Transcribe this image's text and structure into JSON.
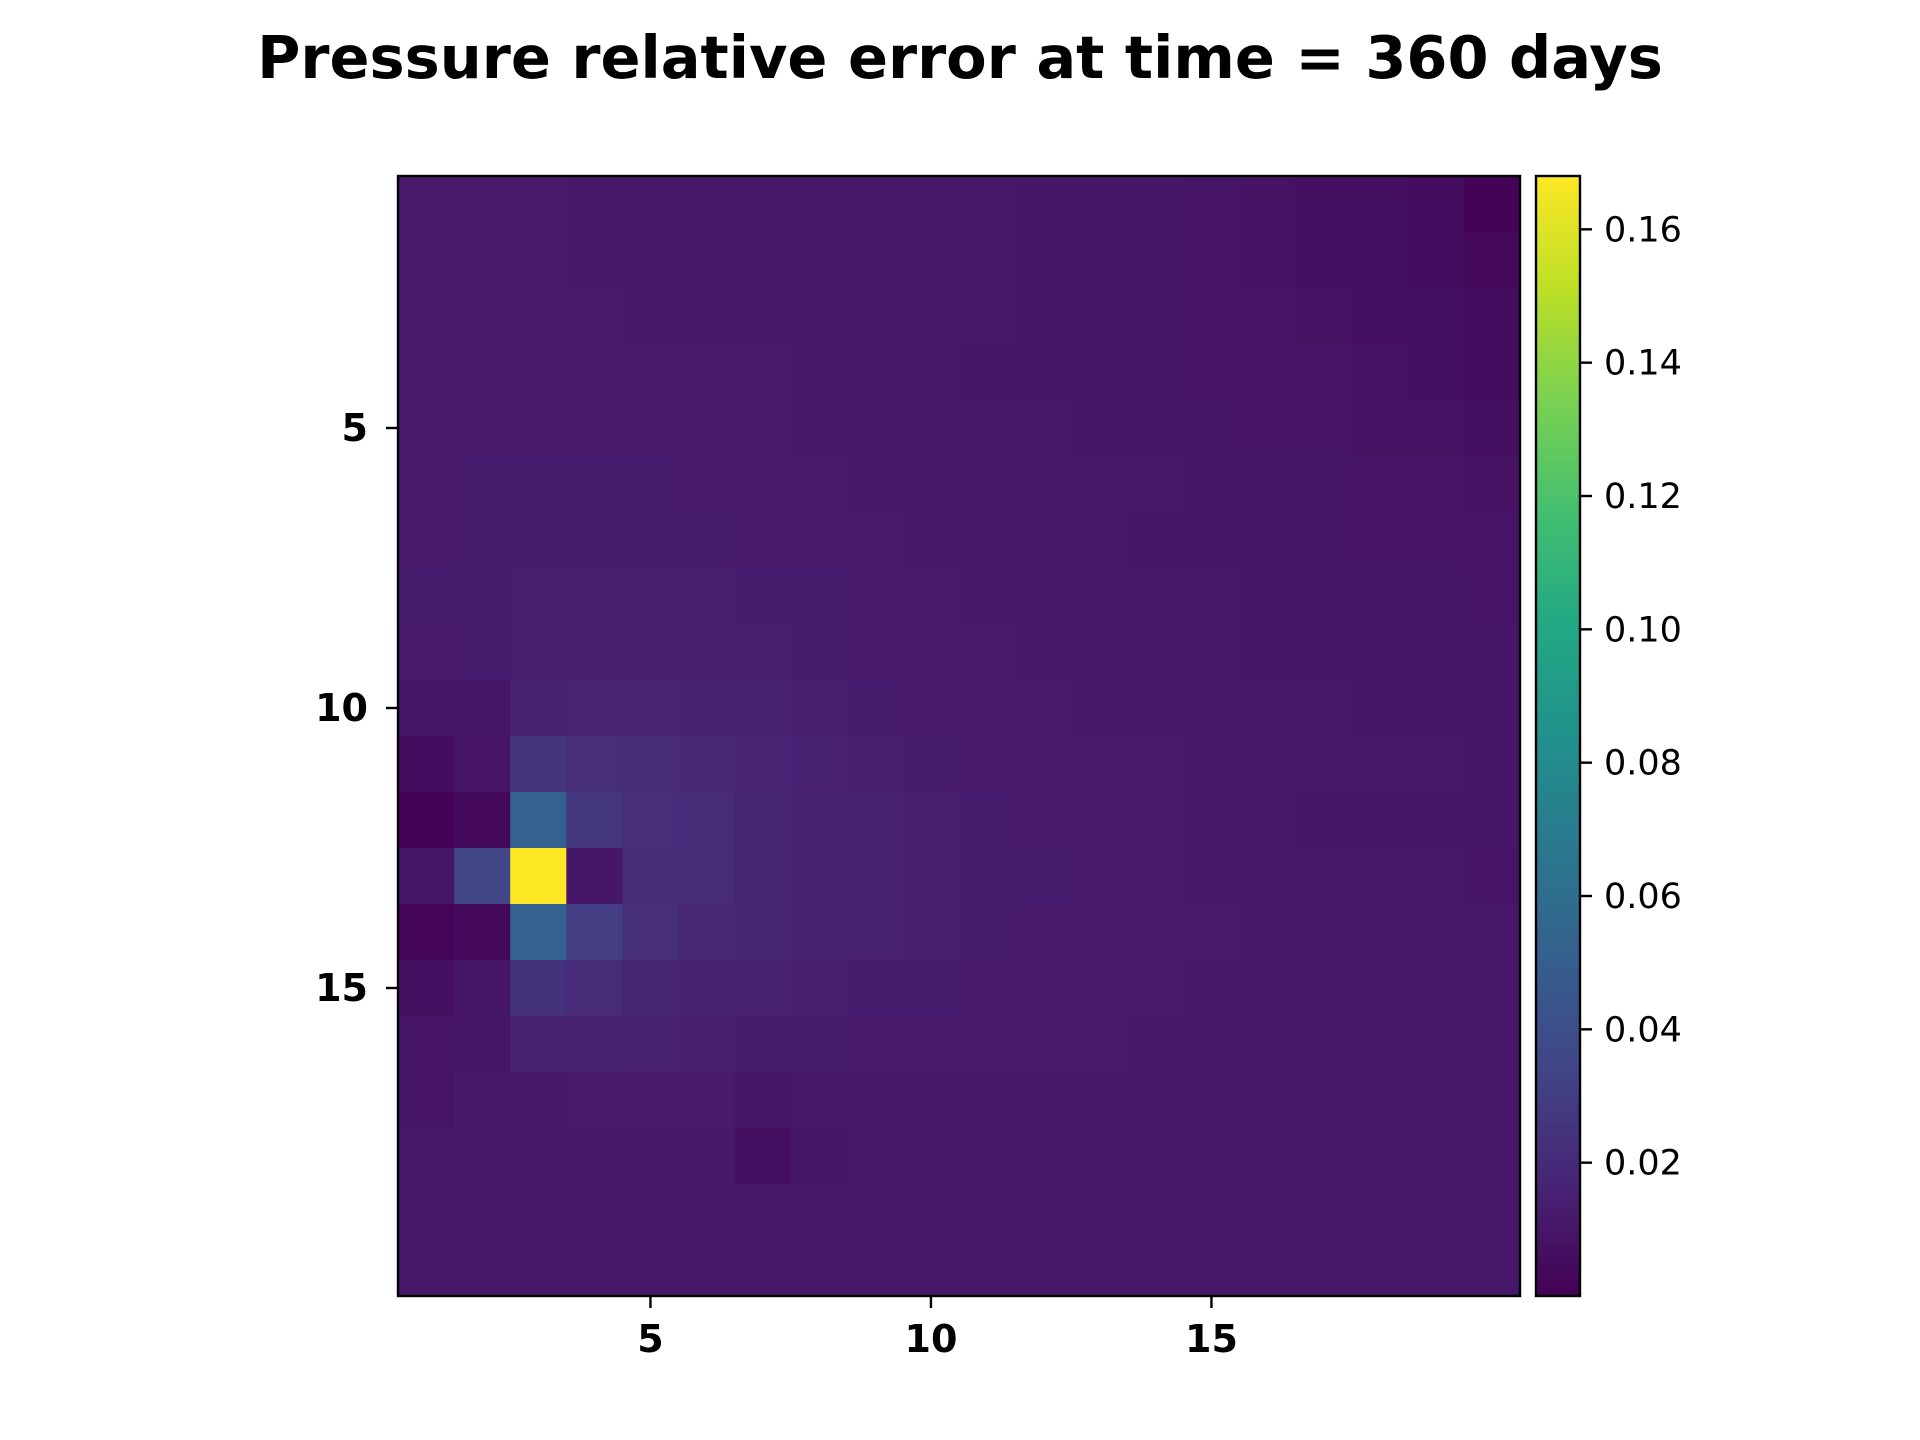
{
  "chart_data": {
    "type": "heatmap",
    "title": "Pressure relative error at time = 360 days",
    "xlabel": "",
    "ylabel": "",
    "grid": false,
    "colormap": "viridis",
    "origin": "upper",
    "n_rows": 20,
    "n_cols": 20,
    "x_extent": [
      0.5,
      20.5
    ],
    "y_extent": [
      0.5,
      20.5
    ],
    "x_ticks": [
      5,
      10,
      15
    ],
    "x_tick_labels": [
      "5",
      "10",
      "15"
    ],
    "y_ticks": [
      5,
      10,
      15
    ],
    "y_tick_labels": [
      "5",
      "10",
      "15"
    ],
    "colorbar": {
      "vmin": 0.0,
      "vmax": 0.168,
      "ticks": [
        0.02,
        0.04,
        0.06,
        0.08,
        0.1,
        0.12,
        0.14,
        0.16
      ],
      "tick_labels": [
        "0.02",
        "0.04",
        "0.06",
        "0.08",
        "0.10",
        "0.12",
        "0.14",
        "0.16"
      ]
    },
    "values": [
      [
        0.012,
        0.012,
        0.012,
        0.011,
        0.011,
        0.011,
        0.011,
        0.011,
        0.011,
        0.011,
        0.011,
        0.01,
        0.01,
        0.01,
        0.009,
        0.008,
        0.007,
        0.007,
        0.005,
        0.001
      ],
      [
        0.012,
        0.012,
        0.012,
        0.011,
        0.011,
        0.011,
        0.011,
        0.011,
        0.011,
        0.011,
        0.011,
        0.01,
        0.01,
        0.01,
        0.009,
        0.008,
        0.007,
        0.007,
        0.006,
        0.004
      ],
      [
        0.012,
        0.012,
        0.012,
        0.012,
        0.011,
        0.011,
        0.011,
        0.011,
        0.011,
        0.011,
        0.011,
        0.01,
        0.01,
        0.01,
        0.009,
        0.009,
        0.008,
        0.007,
        0.007,
        0.006
      ],
      [
        0.012,
        0.012,
        0.012,
        0.012,
        0.012,
        0.012,
        0.012,
        0.011,
        0.011,
        0.011,
        0.01,
        0.01,
        0.01,
        0.01,
        0.009,
        0.009,
        0.009,
        0.008,
        0.007,
        0.006
      ],
      [
        0.012,
        0.012,
        0.012,
        0.012,
        0.012,
        0.012,
        0.012,
        0.011,
        0.011,
        0.011,
        0.011,
        0.011,
        0.01,
        0.01,
        0.01,
        0.009,
        0.009,
        0.008,
        0.008,
        0.007
      ],
      [
        0.012,
        0.013,
        0.013,
        0.013,
        0.013,
        0.012,
        0.012,
        0.012,
        0.011,
        0.011,
        0.011,
        0.011,
        0.011,
        0.011,
        0.01,
        0.01,
        0.01,
        0.009,
        0.009,
        0.008
      ],
      [
        0.012,
        0.013,
        0.013,
        0.013,
        0.013,
        0.013,
        0.012,
        0.012,
        0.012,
        0.011,
        0.011,
        0.011,
        0.011,
        0.01,
        0.01,
        0.01,
        0.01,
        0.009,
        0.009,
        0.009
      ],
      [
        0.013,
        0.013,
        0.014,
        0.014,
        0.014,
        0.014,
        0.013,
        0.013,
        0.012,
        0.012,
        0.011,
        0.011,
        0.011,
        0.011,
        0.011,
        0.01,
        0.01,
        0.01,
        0.01,
        0.009
      ],
      [
        0.012,
        0.013,
        0.014,
        0.014,
        0.014,
        0.014,
        0.014,
        0.013,
        0.012,
        0.012,
        0.012,
        0.011,
        0.011,
        0.011,
        0.011,
        0.01,
        0.01,
        0.01,
        0.01,
        0.01
      ],
      [
        0.01,
        0.01,
        0.016,
        0.017,
        0.017,
        0.016,
        0.015,
        0.014,
        0.013,
        0.012,
        0.012,
        0.012,
        0.011,
        0.011,
        0.011,
        0.011,
        0.011,
        0.01,
        0.01,
        0.01
      ],
      [
        0.006,
        0.009,
        0.025,
        0.022,
        0.02,
        0.019,
        0.017,
        0.015,
        0.014,
        0.013,
        0.012,
        0.012,
        0.012,
        0.012,
        0.011,
        0.011,
        0.011,
        0.011,
        0.011,
        0.01
      ],
      [
        0.001,
        0.004,
        0.052,
        0.027,
        0.022,
        0.02,
        0.018,
        0.016,
        0.015,
        0.014,
        0.013,
        0.012,
        0.012,
        0.012,
        0.011,
        0.011,
        0.01,
        0.01,
        0.01,
        0.01
      ],
      [
        0.01,
        0.035,
        0.168,
        0.01,
        0.02,
        0.02,
        0.018,
        0.016,
        0.015,
        0.014,
        0.013,
        0.013,
        0.012,
        0.012,
        0.011,
        0.011,
        0.011,
        0.011,
        0.011,
        0.009
      ],
      [
        0.002,
        0.004,
        0.052,
        0.03,
        0.022,
        0.019,
        0.018,
        0.016,
        0.015,
        0.014,
        0.013,
        0.012,
        0.012,
        0.012,
        0.012,
        0.011,
        0.011,
        0.011,
        0.011,
        0.011
      ],
      [
        0.007,
        0.01,
        0.024,
        0.02,
        0.018,
        0.016,
        0.015,
        0.014,
        0.013,
        0.013,
        0.012,
        0.012,
        0.012,
        0.012,
        0.011,
        0.011,
        0.011,
        0.011,
        0.011,
        0.011
      ],
      [
        0.009,
        0.01,
        0.016,
        0.016,
        0.015,
        0.014,
        0.013,
        0.013,
        0.012,
        0.012,
        0.012,
        0.012,
        0.012,
        0.011,
        0.011,
        0.011,
        0.011,
        0.011,
        0.011,
        0.011
      ],
      [
        0.009,
        0.011,
        0.011,
        0.012,
        0.012,
        0.012,
        0.01,
        0.011,
        0.011,
        0.011,
        0.011,
        0.011,
        0.011,
        0.011,
        0.011,
        0.011,
        0.011,
        0.011,
        0.011,
        0.011
      ],
      [
        0.011,
        0.011,
        0.011,
        0.011,
        0.011,
        0.011,
        0.007,
        0.01,
        0.011,
        0.011,
        0.011,
        0.011,
        0.011,
        0.011,
        0.011,
        0.011,
        0.011,
        0.011,
        0.011,
        0.011
      ],
      [
        0.011,
        0.011,
        0.011,
        0.011,
        0.011,
        0.011,
        0.011,
        0.011,
        0.011,
        0.011,
        0.011,
        0.011,
        0.011,
        0.011,
        0.011,
        0.011,
        0.011,
        0.011,
        0.011,
        0.011
      ],
      [
        0.011,
        0.011,
        0.011,
        0.011,
        0.011,
        0.011,
        0.011,
        0.011,
        0.011,
        0.011,
        0.011,
        0.011,
        0.011,
        0.011,
        0.011,
        0.011,
        0.011,
        0.011,
        0.011,
        0.011
      ]
    ]
  }
}
